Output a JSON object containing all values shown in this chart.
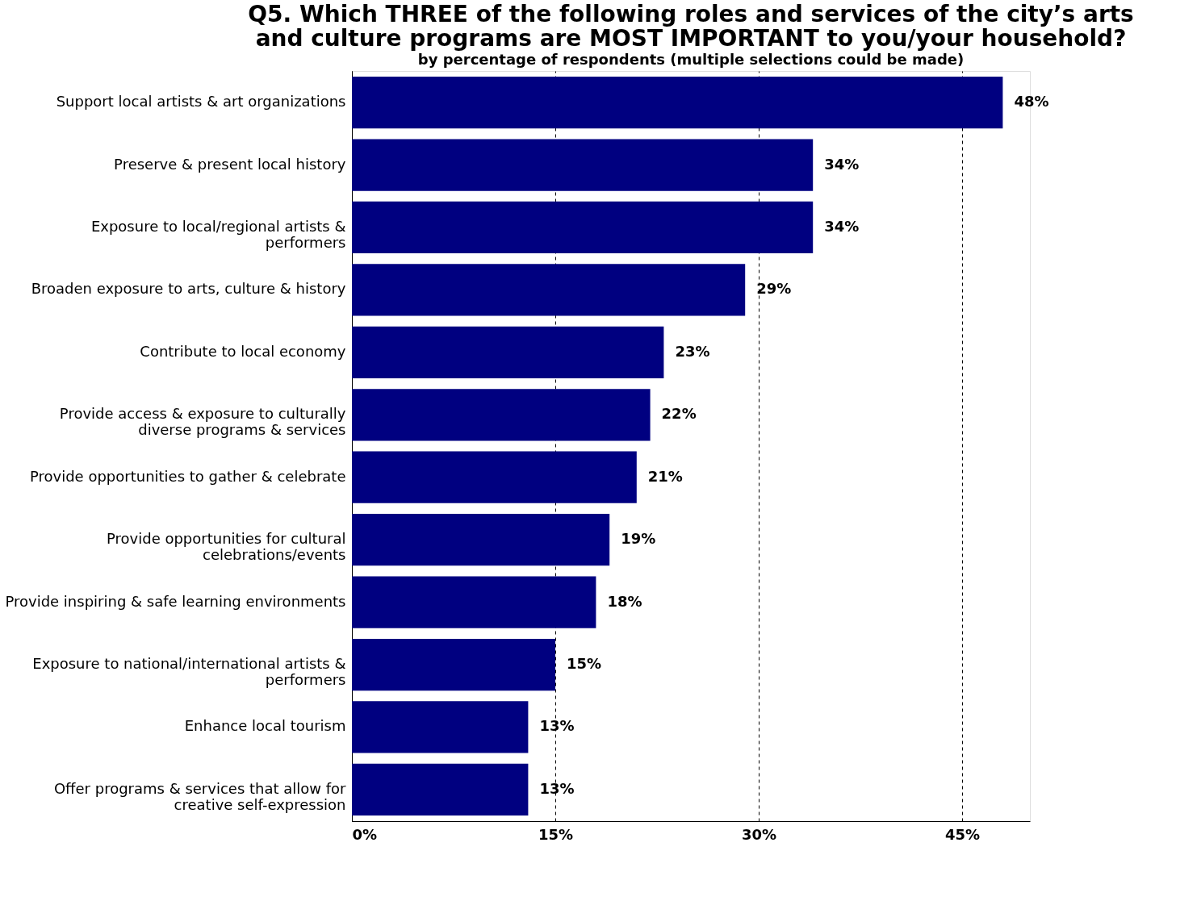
{
  "chart_data": {
    "type": "bar",
    "orientation": "horizontal",
    "title": "Q5.  Which THREE of the following roles and services of the city’s arts and culture programs are MOST IMPORTANT to you/your household?",
    "subtitle": "by percentage of respondents (multiple selections could be made)",
    "categories": [
      "Support local artists & art organizations",
      "Preserve & present local history",
      "Exposure to local/regional artists & performers",
      "Broaden exposure to arts, culture & history",
      "Contribute to local economy",
      "Provide access & exposure to culturally diverse programs & services",
      "Provide opportunities to gather & celebrate",
      "Provide opportunities for cultural celebrations/events",
      "Provide inspiring & safe learning environments",
      "Exposure to national/international artists & performers",
      "Enhance local tourism",
      "Offer programs & services that allow for creative self-expression"
    ],
    "values": [
      48,
      34,
      34,
      29,
      23,
      22,
      21,
      19,
      18,
      15,
      13,
      13
    ],
    "value_labels": [
      "48%",
      "34%",
      "34%",
      "29%",
      "23%",
      "22%",
      "21%",
      "19%",
      "18%",
      "15%",
      "13%",
      "13%"
    ],
    "color": "#000080",
    "xlim": [
      0,
      50
    ],
    "xticks": [
      {
        "value": 0,
        "label": "0%"
      },
      {
        "value": 15,
        "label": "15%"
      },
      {
        "value": 30,
        "label": "30%"
      },
      {
        "value": 45,
        "label": "45%"
      }
    ],
    "grid": "x"
  }
}
